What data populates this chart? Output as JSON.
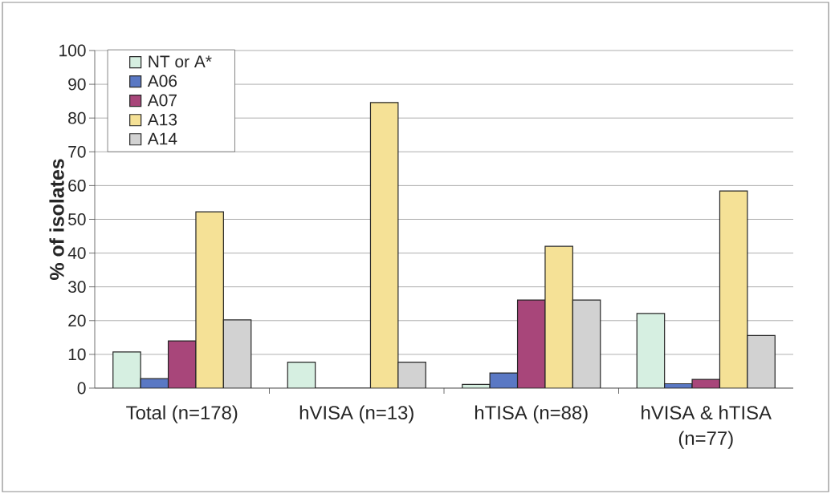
{
  "chart_data": {
    "type": "bar",
    "ylabel": "% of isolates",
    "categories": [
      "Total (n=178)",
      "hVISA (n=13)",
      "hTISA (n=88)",
      "hVISA & hTISA (n=77)"
    ],
    "series": [
      {
        "name": "NT or A*",
        "color": "#d6efe1",
        "values": [
          10.7,
          7.7,
          1.1,
          22.1
        ]
      },
      {
        "name": "A06",
        "color": "#5a78c4",
        "values": [
          2.8,
          0,
          4.5,
          1.3
        ]
      },
      {
        "name": "A07",
        "color": "#a8467a",
        "values": [
          14.0,
          0,
          26.1,
          2.6
        ]
      },
      {
        "name": "A13",
        "color": "#f5e196",
        "values": [
          52.2,
          84.6,
          42.0,
          58.4
        ]
      },
      {
        "name": "A14",
        "color": "#d2d2d2",
        "values": [
          20.2,
          7.7,
          26.1,
          15.6
        ]
      }
    ],
    "ylim": [
      0,
      100
    ],
    "yticks": [
      0,
      10,
      20,
      30,
      40,
      50,
      60,
      70,
      80,
      90,
      100
    ],
    "grid": "y",
    "legend": "top left"
  }
}
